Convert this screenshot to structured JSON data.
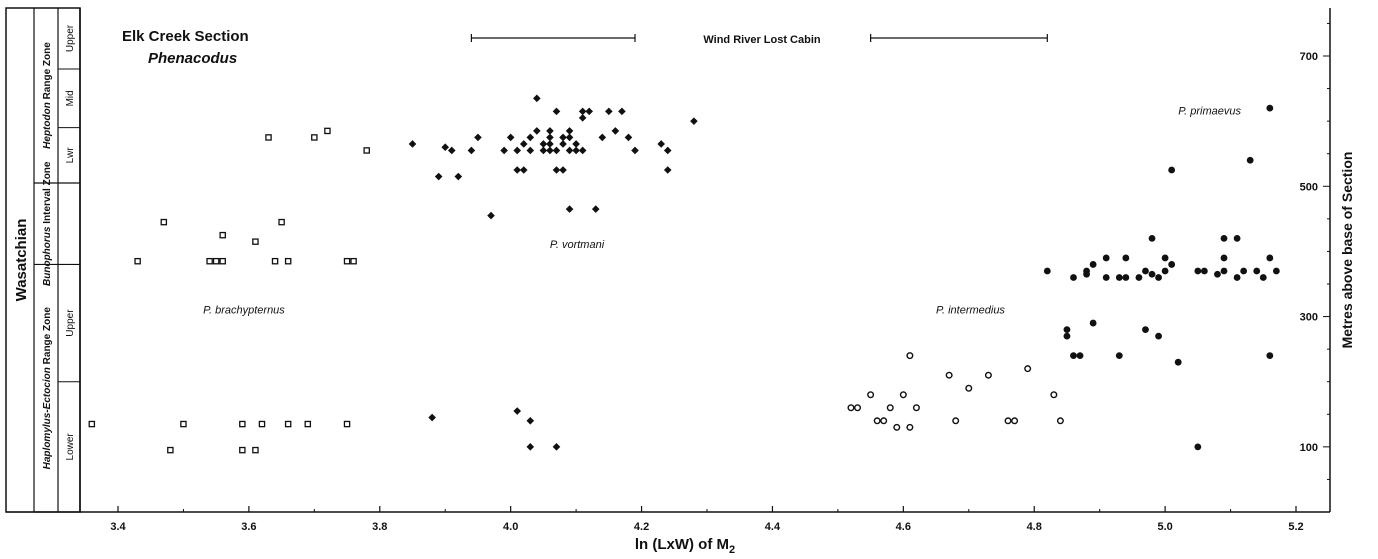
{
  "chart_data": {
    "type": "scatter",
    "title": "Elk Creek Section",
    "subtitle": "Phenacodus",
    "xlabel": "ln (LxW) of M",
    "xlabel_sub": "2",
    "ylabel": "Metres above base of Section",
    "xlim": [
      3.3,
      5.3
    ],
    "ylim": [
      0,
      760
    ],
    "x_ticks": [
      3.4,
      3.6,
      3.8,
      4.0,
      4.2,
      4.4,
      4.6,
      4.8,
      5.0,
      5.2
    ],
    "x_tick_labels": [
      "3.4",
      "3.6",
      "3.8",
      "4.0",
      "4.2",
      "4.4",
      "4.6",
      "4.8",
      "5.0",
      "5.2"
    ],
    "y_ticks": [
      100,
      300,
      500,
      700
    ],
    "y_tick_labels": [
      "100",
      "300",
      "500",
      "700"
    ],
    "grid": false,
    "legend": "none",
    "range_label": "Wind River Lost Cabin",
    "ranges": [
      [
        3.94,
        4.19
      ],
      [
        4.55,
        4.82
      ]
    ],
    "stratigraphy": {
      "stage": "Wasatchian",
      "zones": [
        {
          "name": "Heptodon Range Zone",
          "from": 505,
          "to": 760,
          "subzones": [
            {
              "name": "Lwr",
              "from": 505,
              "to": 590
            },
            {
              "name": "Mid",
              "from": 590,
              "to": 680
            },
            {
              "name": "Upper",
              "from": 680,
              "to": 760
            }
          ]
        },
        {
          "name": "Bunophorus Interval Zone",
          "from": 380,
          "to": 505,
          "subzones": []
        },
        {
          "name": "Haplomylus-Ectocion Range Zone",
          "from": 0,
          "to": 380,
          "subzones": [
            {
              "name": "Lower",
              "from": 0,
              "to": 200
            },
            {
              "name": "Upper",
              "from": 200,
              "to": 380
            }
          ]
        }
      ]
    },
    "series": [
      {
        "name": "P. brachypternus",
        "marker": "open-square",
        "label_pos": [
          3.53,
          305
        ],
        "points": [
          [
            3.36,
            135
          ],
          [
            3.43,
            385
          ],
          [
            3.47,
            445
          ],
          [
            3.48,
            95
          ],
          [
            3.5,
            135
          ],
          [
            3.54,
            385
          ],
          [
            3.55,
            385
          ],
          [
            3.56,
            385
          ],
          [
            3.56,
            425
          ],
          [
            3.59,
            135
          ],
          [
            3.59,
            95
          ],
          [
            3.61,
            415
          ],
          [
            3.61,
            95
          ],
          [
            3.62,
            135
          ],
          [
            3.63,
            575
          ],
          [
            3.64,
            385
          ],
          [
            3.65,
            445
          ],
          [
            3.66,
            385
          ],
          [
            3.66,
            135
          ],
          [
            3.69,
            135
          ],
          [
            3.7,
            575
          ],
          [
            3.72,
            585
          ],
          [
            3.75,
            135
          ],
          [
            3.75,
            385
          ],
          [
            3.76,
            385
          ],
          [
            3.78,
            555
          ]
        ]
      },
      {
        "name": "P. vortmani",
        "marker": "filled-diamond",
        "label_pos": [
          4.06,
          405
        ],
        "points": [
          [
            3.85,
            565
          ],
          [
            3.88,
            145
          ],
          [
            3.89,
            515
          ],
          [
            3.9,
            560
          ],
          [
            3.91,
            555
          ],
          [
            3.92,
            515
          ],
          [
            3.94,
            555
          ],
          [
            3.95,
            575
          ],
          [
            3.97,
            455
          ],
          [
            3.99,
            555
          ],
          [
            4.0,
            575
          ],
          [
            4.01,
            525
          ],
          [
            4.01,
            555
          ],
          [
            4.01,
            155
          ],
          [
            4.02,
            525
          ],
          [
            4.02,
            565
          ],
          [
            4.03,
            575
          ],
          [
            4.03,
            555
          ],
          [
            4.03,
            140
          ],
          [
            4.03,
            100
          ],
          [
            4.04,
            635
          ],
          [
            4.04,
            585
          ],
          [
            4.05,
            555
          ],
          [
            4.05,
            565
          ],
          [
            4.06,
            565
          ],
          [
            4.06,
            555
          ],
          [
            4.06,
            575
          ],
          [
            4.06,
            585
          ],
          [
            4.07,
            525
          ],
          [
            4.07,
            615
          ],
          [
            4.07,
            555
          ],
          [
            4.07,
            100
          ],
          [
            4.08,
            525
          ],
          [
            4.08,
            565
          ],
          [
            4.08,
            575
          ],
          [
            4.09,
            575
          ],
          [
            4.09,
            465
          ],
          [
            4.09,
            555
          ],
          [
            4.09,
            585
          ],
          [
            4.1,
            565
          ],
          [
            4.1,
            555
          ],
          [
            4.11,
            615
          ],
          [
            4.11,
            605
          ],
          [
            4.11,
            555
          ],
          [
            4.12,
            615
          ],
          [
            4.13,
            465
          ],
          [
            4.14,
            575
          ],
          [
            4.15,
            615
          ],
          [
            4.16,
            585
          ],
          [
            4.17,
            615
          ],
          [
            4.18,
            575
          ],
          [
            4.19,
            555
          ],
          [
            4.23,
            565
          ],
          [
            4.24,
            555
          ],
          [
            4.24,
            525
          ],
          [
            4.28,
            600
          ]
        ]
      },
      {
        "name": "P. intermedius",
        "marker": "open-circle",
        "label_pos": [
          4.65,
          305
        ],
        "points": [
          [
            4.52,
            160
          ],
          [
            4.53,
            160
          ],
          [
            4.55,
            180
          ],
          [
            4.56,
            140
          ],
          [
            4.57,
            140
          ],
          [
            4.58,
            160
          ],
          [
            4.59,
            130
          ],
          [
            4.6,
            180
          ],
          [
            4.61,
            130
          ],
          [
            4.61,
            240
          ],
          [
            4.62,
            160
          ],
          [
            4.67,
            210
          ],
          [
            4.68,
            140
          ],
          [
            4.7,
            190
          ],
          [
            4.73,
            210
          ],
          [
            4.76,
            140
          ],
          [
            4.77,
            140
          ],
          [
            4.79,
            220
          ],
          [
            4.83,
            180
          ],
          [
            4.84,
            140
          ]
        ]
      },
      {
        "name": "P. primaevus",
        "marker": "filled-circle",
        "label_pos": [
          5.02,
          610
        ],
        "points": [
          [
            4.82,
            370
          ],
          [
            4.85,
            270
          ],
          [
            4.85,
            280
          ],
          [
            4.86,
            360
          ],
          [
            4.86,
            240
          ],
          [
            4.87,
            240
          ],
          [
            4.88,
            365
          ],
          [
            4.88,
            370
          ],
          [
            4.89,
            380
          ],
          [
            4.89,
            290
          ],
          [
            4.91,
            360
          ],
          [
            4.91,
            390
          ],
          [
            4.93,
            360
          ],
          [
            4.93,
            240
          ],
          [
            4.94,
            390
          ],
          [
            4.94,
            360
          ],
          [
            4.96,
            360
          ],
          [
            4.97,
            370
          ],
          [
            4.97,
            280
          ],
          [
            4.98,
            420
          ],
          [
            4.98,
            365
          ],
          [
            4.99,
            270
          ],
          [
            4.99,
            360
          ],
          [
            5.0,
            390
          ],
          [
            5.0,
            370
          ],
          [
            5.01,
            380
          ],
          [
            5.01,
            525
          ],
          [
            5.02,
            230
          ],
          [
            5.05,
            370
          ],
          [
            5.05,
            100
          ],
          [
            5.06,
            370
          ],
          [
            5.08,
            365
          ],
          [
            5.09,
            370
          ],
          [
            5.09,
            390
          ],
          [
            5.09,
            420
          ],
          [
            5.11,
            360
          ],
          [
            5.11,
            420
          ],
          [
            5.12,
            370
          ],
          [
            5.13,
            540
          ],
          [
            5.14,
            370
          ],
          [
            5.15,
            360
          ],
          [
            5.16,
            620
          ],
          [
            5.16,
            390
          ],
          [
            5.16,
            240
          ],
          [
            5.17,
            370
          ]
        ]
      }
    ]
  }
}
